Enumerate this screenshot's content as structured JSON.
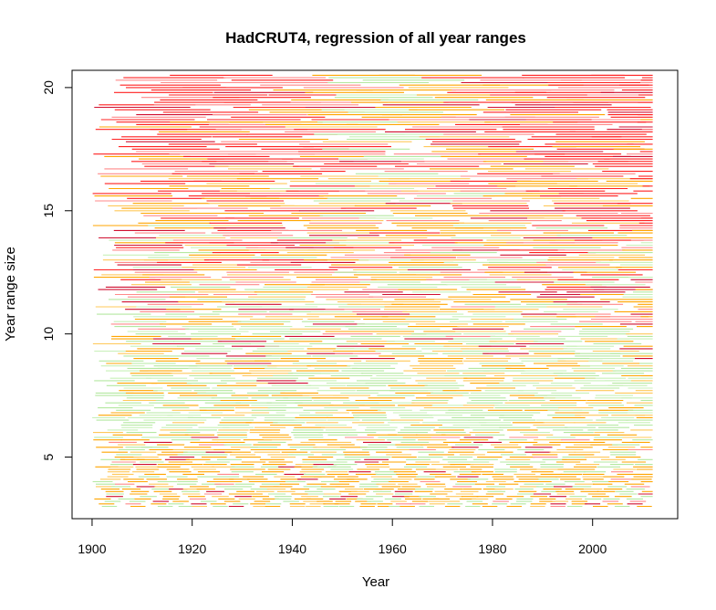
{
  "chart_data": {
    "type": "segment",
    "title": "HadCRUT4, regression of all year ranges",
    "xlabel": "Year",
    "ylabel": "Year range size",
    "xlim": [
      1896,
      2017
    ],
    "ylim": [
      2.5,
      20.7
    ],
    "x_ticks": [
      1900,
      1920,
      1940,
      1960,
      1980,
      2000
    ],
    "y_ticks": [
      5,
      10,
      15,
      20
    ],
    "x_tick_labels": [
      "1900",
      "1920",
      "1940",
      "1960",
      "1980",
      "2000"
    ],
    "y_tick_labels": [
      "5",
      "10",
      "15",
      "20"
    ],
    "x_range": [
      1900,
      2012
    ],
    "size_range": [
      3,
      20.5
    ],
    "segment_length": "equal to year range size",
    "segments_per_size_unit": 10,
    "grid": false,
    "legend": "none",
    "colors": {
      "strong_warming": "#ff2020",
      "warming": "#ff8a8a",
      "dark_warming": "#d01030",
      "mild_warming": "#ffa500",
      "weak_warming": "#ffc85a",
      "flat": "#b4e8a0",
      "flat_light": "#c8f0b8",
      "axis": "#000000",
      "background": "#ffffff"
    }
  }
}
